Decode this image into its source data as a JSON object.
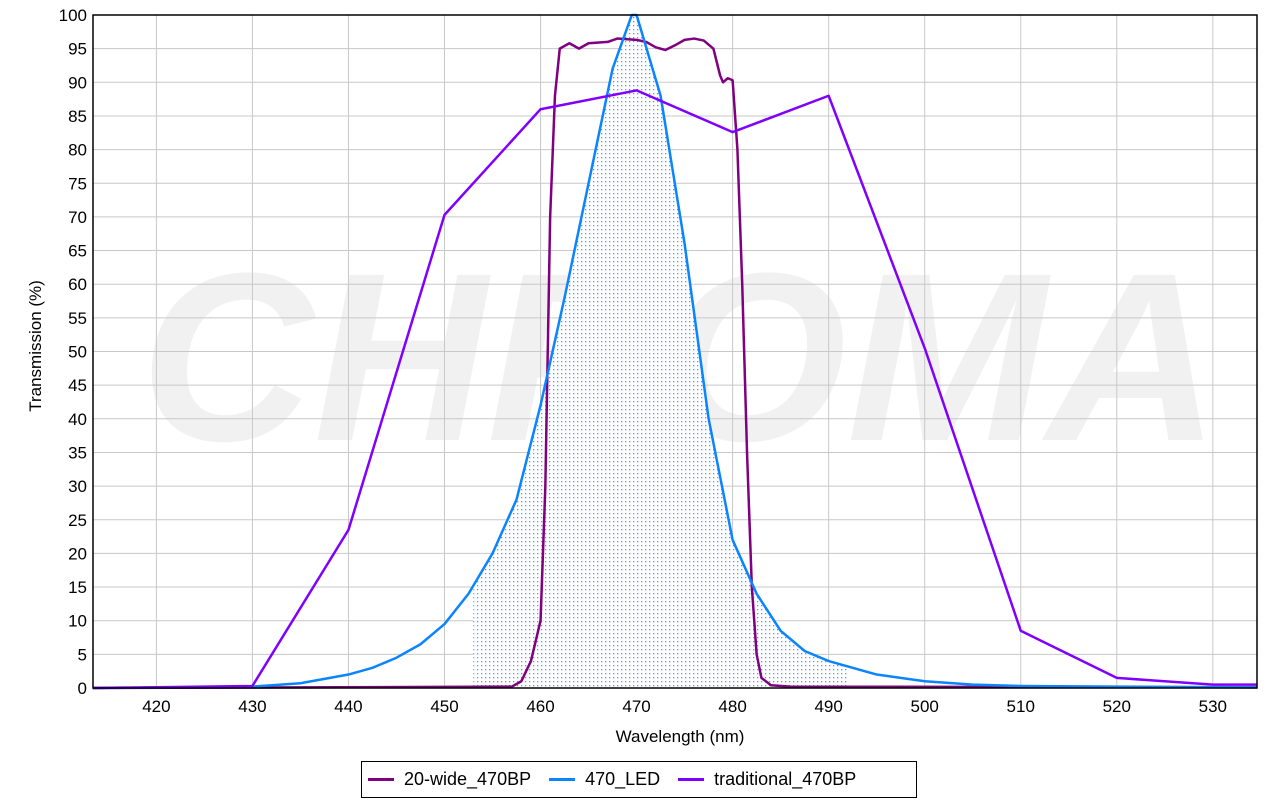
{
  "watermark": "CHROMA",
  "chart_data": {
    "type": "line",
    "title": "",
    "xlabel": "Wavelength (nm)",
    "ylabel": "Transmission (%)",
    "xlim": [
      413.4,
      534.6
    ],
    "ylim": [
      0,
      100
    ],
    "xticks": [
      420,
      430,
      440,
      450,
      460,
      470,
      480,
      490,
      500,
      510,
      520,
      530
    ],
    "yticks": [
      0,
      5,
      10,
      15,
      20,
      25,
      30,
      35,
      40,
      45,
      50,
      55,
      60,
      65,
      70,
      75,
      80,
      85,
      90,
      95,
      100
    ],
    "grid": true,
    "legend_position": "bottom",
    "shaded_region": {
      "series": "470_LED",
      "x_range": [
        453,
        492
      ],
      "color": "#4a8fd8"
    },
    "series": [
      {
        "name": "20-wide_470BP",
        "color": "#800080",
        "x": [
          413.4,
          457,
          458,
          459,
          460,
          460.5,
          461,
          461.5,
          462,
          463,
          464,
          465,
          467,
          468,
          470,
          471,
          472,
          473,
          474,
          475,
          476,
          477,
          478,
          478.7,
          479,
          479.5,
          480,
          480.5,
          481,
          481.5,
          482,
          482.5,
          483,
          484,
          486,
          534.6
        ],
        "y": [
          0,
          0.2,
          1,
          4,
          10,
          30,
          70,
          88,
          95,
          95.8,
          95,
          95.8,
          96,
          96.5,
          96.3,
          96,
          95.2,
          94.8,
          95.5,
          96.3,
          96.5,
          96.2,
          95,
          91,
          90,
          90.6,
          90.3,
          80,
          60,
          35,
          15,
          5,
          1.5,
          0.4,
          0.2,
          0.1
        ]
      },
      {
        "name": "470_LED",
        "color": "#0a84ff",
        "x": [
          413.4,
          430,
          435,
          440,
          442.5,
          445,
          447.5,
          450,
          452.5,
          455,
          457.5,
          460,
          462.5,
          465,
          467.5,
          469.5,
          470,
          472.5,
          475,
          477.5,
          480,
          482.5,
          485,
          487.5,
          490,
          495,
          500,
          505,
          510,
          520,
          534.6
        ],
        "y": [
          0,
          0.2,
          0.7,
          2,
          3,
          4.5,
          6.5,
          9.5,
          14,
          20,
          28,
          42,
          58,
          75,
          92,
          100,
          100,
          88,
          66,
          40,
          22,
          14,
          8.5,
          5.5,
          4,
          2,
          1,
          0.5,
          0.3,
          0.2,
          0.1
        ]
      },
      {
        "name": "traditional_470BP",
        "color": "#8000ff",
        "x": [
          413.4,
          430,
          440,
          450,
          460,
          470,
          480,
          490,
          500,
          510,
          520,
          530,
          534.6
        ],
        "y": [
          0,
          0.3,
          23.5,
          70.3,
          86,
          88.8,
          82.6,
          88,
          50.5,
          8.5,
          1.5,
          0.5,
          0.5
        ]
      }
    ]
  }
}
